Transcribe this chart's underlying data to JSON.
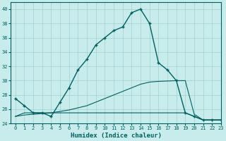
{
  "xlabel": "Humidex (Indice chaleur)",
  "bg_color": "#c8ecec",
  "grid_color": "#a0d0d0",
  "line_color": "#006060",
  "xlim": [
    -0.5,
    23
  ],
  "ylim": [
    24,
    41
  ],
  "yticks": [
    24,
    26,
    28,
    30,
    32,
    34,
    36,
    38,
    40
  ],
  "xticks": [
    0,
    1,
    2,
    3,
    4,
    5,
    6,
    7,
    8,
    9,
    10,
    11,
    12,
    13,
    14,
    15,
    16,
    17,
    18,
    19,
    20,
    21,
    22,
    23
  ],
  "series1_x": [
    0,
    1,
    2,
    3,
    4,
    5,
    6,
    7,
    8,
    9,
    10,
    11,
    12,
    13,
    14,
    15,
    16,
    17,
    18,
    19,
    20,
    21,
    22,
    23
  ],
  "series1_y": [
    27.5,
    26.5,
    25.5,
    25.5,
    25.0,
    27.0,
    29.0,
    31.5,
    33.0,
    35.0,
    36.0,
    37.0,
    37.5,
    39.5,
    40.0,
    38.0,
    32.5,
    31.5,
    30.0,
    25.5,
    25.0,
    24.5,
    24.5,
    24.5
  ],
  "series2_x": [
    0,
    1,
    2,
    3,
    4,
    5,
    6,
    7,
    8,
    9,
    10,
    11,
    12,
    13,
    14,
    15,
    16,
    17,
    18,
    19,
    20,
    21,
    22,
    23
  ],
  "series2_y": [
    25.0,
    25.5,
    25.5,
    25.5,
    25.5,
    25.5,
    25.5,
    25.5,
    25.5,
    25.5,
    25.5,
    25.5,
    25.5,
    25.5,
    25.5,
    25.5,
    25.5,
    25.5,
    25.5,
    25.5,
    25.0,
    24.5,
    24.5,
    24.5
  ],
  "series3_x": [
    0,
    1,
    2,
    3,
    4,
    5,
    6,
    7,
    8,
    9,
    10,
    11,
    12,
    13,
    14,
    15,
    16,
    17,
    18,
    19,
    20,
    21,
    22,
    23
  ],
  "series3_y": [
    25.0,
    25.2,
    25.3,
    25.4,
    25.5,
    25.7,
    25.9,
    26.2,
    26.5,
    27.0,
    27.5,
    28.0,
    28.5,
    29.0,
    29.5,
    29.8,
    29.9,
    29.95,
    30.0,
    30.0,
    25.3,
    24.5,
    24.5,
    24.5
  ]
}
